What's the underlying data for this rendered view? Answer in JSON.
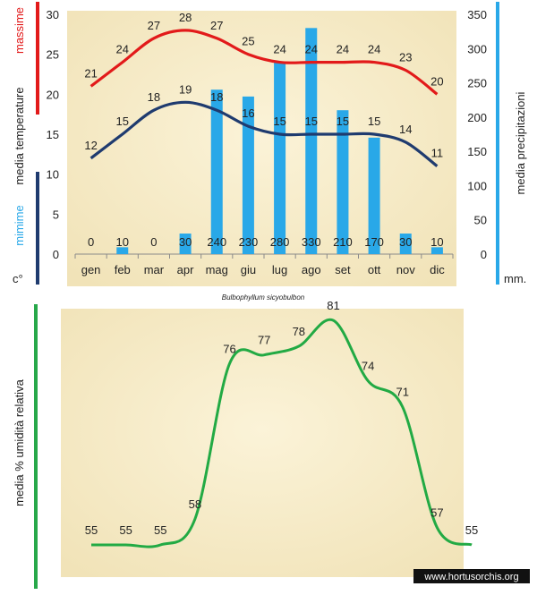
{
  "title": "Bulbophyllum sicyobulbon",
  "watermark": "www.hortusorchis.org",
  "colors": {
    "max_line": "#e21a1a",
    "min_line": "#1f3b6f",
    "bars": "#29a8e8",
    "humidity_line": "#22aa44",
    "left_bar_green": "#27a84a",
    "paper": "#f6ecc8"
  },
  "chart_data": [
    {
      "type": "bar+line",
      "categories": [
        "gen",
        "feb",
        "mar",
        "apr",
        "mag",
        "giu",
        "lug",
        "ago",
        "set",
        "ott",
        "nov",
        "dic"
      ],
      "series": [
        {
          "name": "massime",
          "axis": "left",
          "values": [
            21,
            24,
            27,
            28,
            27,
            25,
            24,
            24,
            24,
            24,
            23,
            20
          ]
        },
        {
          "name": "mimime",
          "axis": "left",
          "values": [
            12,
            15,
            18,
            19,
            18,
            16,
            15,
            15,
            15,
            15,
            14,
            11
          ]
        },
        {
          "name": "media precipitazioni",
          "axis": "right",
          "values": [
            0,
            10,
            0,
            30,
            240,
            230,
            280,
            330,
            210,
            170,
            30,
            10
          ]
        }
      ],
      "ylabel_left": "media temperature",
      "ylabel_left_unit": "c°",
      "ylabel_right": "media precipitazioni",
      "ylabel_right_unit": "mm.",
      "ylim_left": [
        0,
        30
      ],
      "yticks_left": [
        "0",
        "5",
        "10",
        "15",
        "20",
        "25",
        "30"
      ],
      "ylim_right": [
        0,
        350
      ],
      "yticks_right": [
        "0",
        "50",
        "100",
        "150",
        "200",
        "250",
        "300",
        "350"
      ]
    },
    {
      "type": "line",
      "values": [
        55,
        55,
        55,
        58,
        76,
        77,
        78,
        81,
        74,
        71,
        57,
        55
      ],
      "ylabel": "media % umidità relativa"
    }
  ]
}
